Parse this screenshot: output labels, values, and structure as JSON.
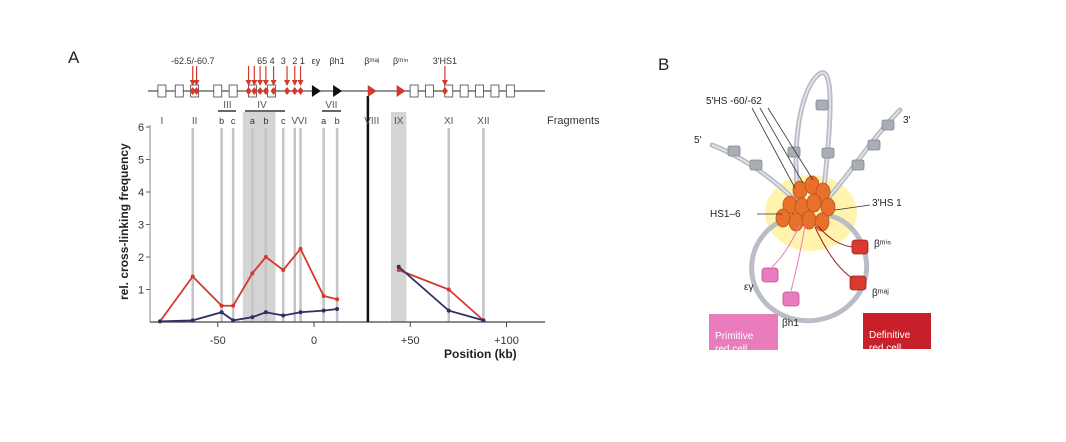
{
  "panel_a": {
    "label": "A",
    "fragments_label": "Fragments",
    "chart_data": {
      "type": "line",
      "xlabel": "Position (kb)",
      "ylabel": "rel. cross-linking frequency",
      "xlim": [
        -80,
        120
      ],
      "ylim": [
        0,
        6
      ],
      "x_ticks": [
        -50,
        0,
        50,
        100
      ],
      "x_tick_labels": [
        "-50",
        "0",
        "+50",
        "+100"
      ],
      "y_ticks": [
        1,
        2,
        3,
        4,
        5,
        6
      ],
      "series": [
        {
          "color": "#d23a2e",
          "x": [
            -80,
            -63,
            -48,
            -42,
            -32,
            -25,
            -16,
            -7,
            5,
            12
          ],
          "y": [
            0.02,
            1.4,
            0.5,
            0.5,
            1.5,
            2.0,
            1.6,
            2.25,
            0.8,
            0.7
          ]
        },
        {
          "color": "#2e2e66",
          "x": [
            -80,
            -63,
            -48,
            -42,
            -32,
            -25,
            -16,
            -7,
            5,
            12
          ],
          "y": [
            0.02,
            0.05,
            0.3,
            0.05,
            0.15,
            0.3,
            0.2,
            0.3,
            0.35,
            0.4
          ]
        },
        {
          "color": "#d23a2e",
          "x": [
            44,
            70,
            88
          ],
          "y": [
            1.6,
            1.0,
            0.05
          ]
        },
        {
          "color": "#2e2e66",
          "x": [
            44,
            70,
            88
          ],
          "y": [
            1.7,
            0.35,
            0.05
          ]
        }
      ],
      "shaded_ranges": [
        [
          -37,
          -20
        ],
        [
          40,
          48
        ]
      ],
      "thick_vertical_line_x": 28,
      "gray_lines_x": [
        -63,
        -48,
        -42,
        -32,
        -25,
        -16,
        -10,
        -7,
        5,
        12,
        70,
        88
      ],
      "fragment_labels": [
        {
          "text": "I",
          "x": -79
        },
        {
          "text": "II",
          "x": -62
        },
        {
          "text": "III",
          "x": -45
        },
        {
          "text": "b",
          "x": -48
        },
        {
          "text": "c",
          "x": -42
        },
        {
          "text": "IV",
          "x": -27
        },
        {
          "text": "a",
          "x": -32
        },
        {
          "text": "b",
          "x": -25
        },
        {
          "text": "c",
          "x": -16
        },
        {
          "text": "V",
          "x": -10
        },
        {
          "text": "VI",
          "x": -6
        },
        {
          "text": "VII",
          "x": 9
        },
        {
          "text": "a",
          "x": 5
        },
        {
          "text": "b",
          "x": 12
        },
        {
          "text": "VIII",
          "x": 30
        },
        {
          "text": "IX",
          "x": 44
        },
        {
          "text": "XI",
          "x": 70
        },
        {
          "text": "XII",
          "x": 88
        }
      ],
      "map_labels": [
        {
          "text": "-62.5/-60.7",
          "x": -63
        },
        {
          "text": "65 4",
          "x": -25
        },
        {
          "text": "3",
          "x": -16
        },
        {
          "text": "2 1",
          "x": -8
        },
        {
          "text": "εy",
          "x": 1
        },
        {
          "text": "βh1",
          "x": 12
        },
        {
          "text": "βᵐᵃʲ",
          "x": 30
        },
        {
          "text": "βᵐⁱⁿ",
          "x": 45
        },
        {
          "text": "3'HS1",
          "x": 68
        }
      ]
    }
  },
  "panel_b": {
    "label": "B",
    "labels": {
      "hs_top": "5'HS -60/-62",
      "five_prime": "5'",
      "three_prime": "3'",
      "hs16": "HS1–6",
      "hs1_3": "3'HS 1",
      "ey": "εγ",
      "bh1": "βh1",
      "bmin": "βᵐⁱⁿ",
      "bmaj": "βᵐᵃʲ"
    },
    "primitive_box": "Primitive\nred cell",
    "definitive_box": "Definitive\nred cell",
    "colors": {
      "primitive": "#e87cbc",
      "definitive": "#c8202a",
      "hub": "#e8702a",
      "halo": "#fff2a0"
    }
  }
}
